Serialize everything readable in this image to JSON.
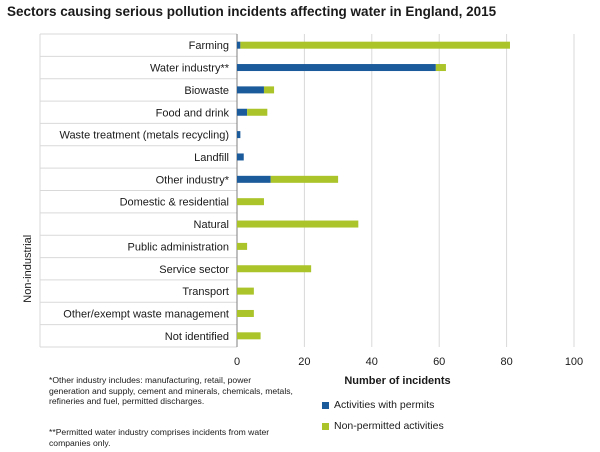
{
  "title": "Sectors causing serious pollution incidents affecting water in England, 2015",
  "group_label": "Non-industrial",
  "footnotes": [
    "*Other industry includes: manufacturing, retail, power generation and supply, cement and minerals, chemicals, metals, refineries and fuel, permitted discharges.",
    "**Permitted water industry comprises incidents from water companies only."
  ],
  "colors": {
    "permits": "#1b5a9b",
    "non_permitted": "#aac429",
    "grid": "#d9d9d9",
    "axis": "#7f7f7f"
  },
  "chart_data": {
    "type": "bar",
    "orientation": "horizontal",
    "stacked": true,
    "title": "Sectors causing serious pollution incidents affecting water in England, 2015",
    "xlabel": "Number of incidents",
    "ylabel": "",
    "xlim": [
      0,
      100
    ],
    "xticks": [
      0,
      20,
      40,
      60,
      80,
      100
    ],
    "grid": true,
    "legend_position": "bottom",
    "categories": [
      "Farming",
      "Water industry**",
      "Biowaste",
      "Food and drink",
      "Waste treatment (metals recycling)",
      "Landfill",
      "Other industry*",
      "Domestic & residential",
      "Natural",
      "Public administration",
      "Service sector",
      "Transport",
      "Other/exempt waste management",
      "Not identified"
    ],
    "series": [
      {
        "name": "Activities with permits",
        "color": "#1b5a9b",
        "values": [
          1,
          59,
          8,
          3,
          1,
          2,
          10,
          0,
          0,
          0,
          0,
          0,
          0,
          0
        ]
      },
      {
        "name": "Non-permitted activities",
        "color": "#aac429",
        "values": [
          80,
          3,
          3,
          6,
          0,
          0,
          20,
          8,
          36,
          3,
          22,
          5,
          5,
          7
        ]
      }
    ],
    "category_groups": [
      {
        "label": "Non-industrial",
        "categories": [
          "Domestic & residential",
          "Natural",
          "Public administration",
          "Service sector",
          "Transport",
          "Other/exempt waste management",
          "Not identified"
        ]
      }
    ]
  }
}
